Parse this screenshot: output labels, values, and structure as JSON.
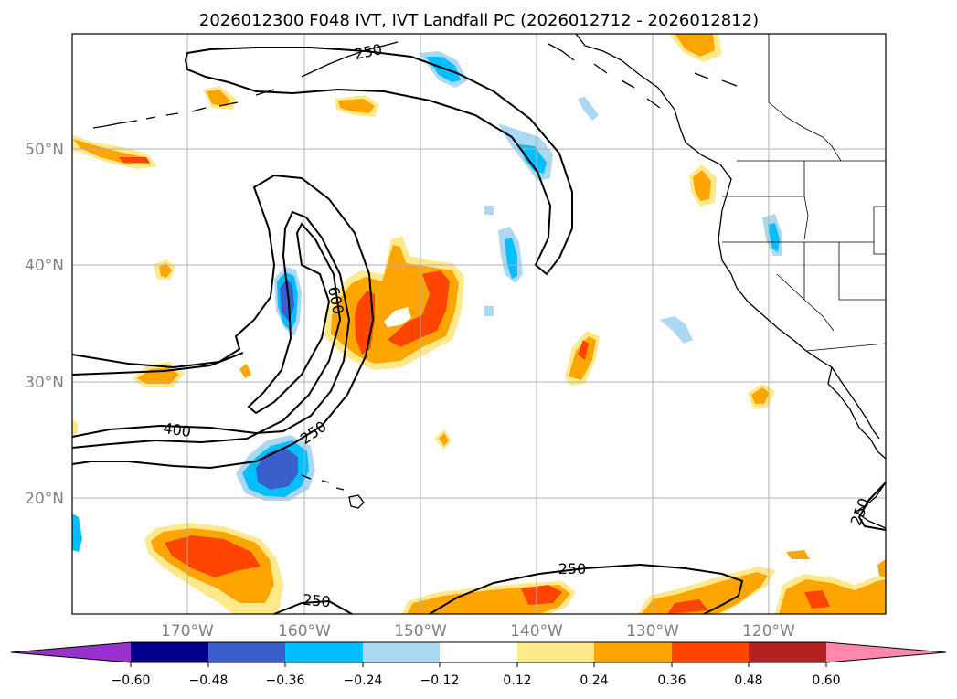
{
  "title": "2026012300 F048 IVT, IVT Landfall PC (2026012712 - 2026012812)",
  "map": {
    "latitude_labels": [
      "50°N",
      "40°N",
      "30°N",
      "20°N"
    ],
    "longitude_labels": [
      "170°W",
      "160°W",
      "150°W",
      "140°W",
      "130°W",
      "120°W"
    ],
    "contour_labels": [
      "250",
      "600",
      "400",
      "250",
      "250",
      "250",
      "250"
    ]
  },
  "colorbar": {
    "tick_labels": [
      "−0.60",
      "−0.48",
      "−0.36",
      "−0.24",
      "−0.12",
      "0.12",
      "0.24",
      "0.36",
      "0.48",
      "0.60"
    ],
    "colors": [
      "#9932cc",
      "#00008b",
      "#3a5fcd",
      "#00bfff",
      "#add8f2",
      "#ffffff",
      "#ffe98a",
      "#ffa500",
      "#ff4500",
      "#b22222",
      "#ff88aa"
    ]
  },
  "palette": {
    "pos_light": "#ffe98a",
    "pos_mid": "#ffa500",
    "pos_high": "#ff4500",
    "neg_light": "#add8f2",
    "neg_mid": "#00bfff",
    "neg_high": "#3a5fcd"
  }
}
